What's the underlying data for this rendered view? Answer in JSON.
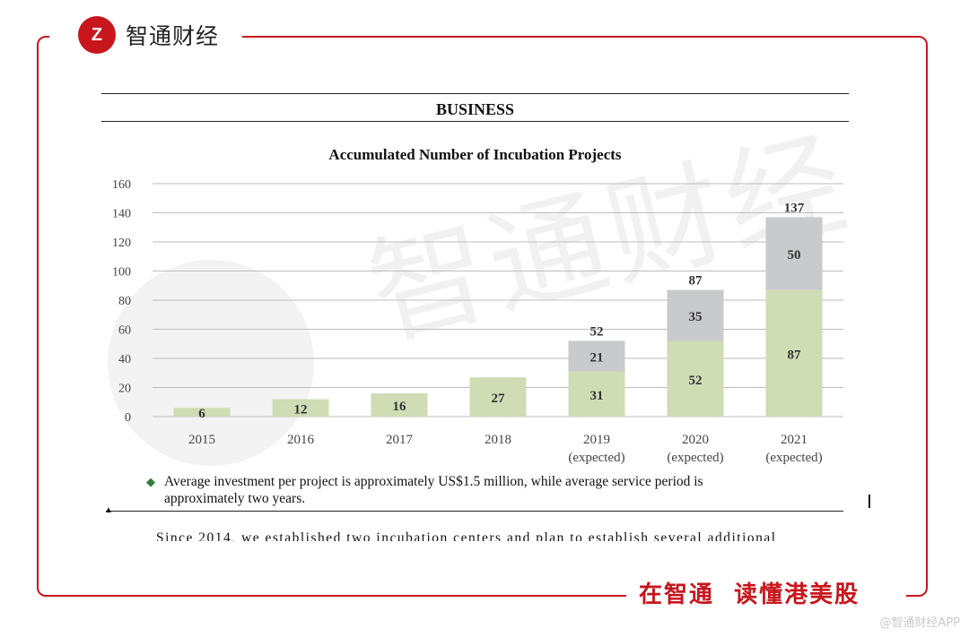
{
  "brand": {
    "logo_text": "Z",
    "name": "智通财经"
  },
  "slogan": "在智通  读懂港美股",
  "credit": "@智通财经APP",
  "watermark": "智通财经",
  "section_title": "BUSINESS",
  "note": {
    "line1": "Average investment per project is approximately US$1.5 million, while average service period is",
    "line2": "approximately two years."
  },
  "cutoff_text": "Since 2014, we established two incubation centers and plan to establish several additional",
  "caret": "I",
  "colors": {
    "accent": "#c8161d",
    "series_base": "#cfdcb4",
    "series_additional": "#c9cacb",
    "bullet": "#2e7d3a"
  },
  "chart_data": {
    "type": "bar",
    "stacked": true,
    "title": "Accumulated Number of Incubation Projects",
    "categories": [
      "2015",
      "2016",
      "2017",
      "2018",
      "2019",
      "2020",
      "2021"
    ],
    "category_sublabels": [
      "",
      "",
      "",
      "",
      "(expected)",
      "(expected)",
      "(expected)"
    ],
    "series": [
      {
        "values": [
          6,
          12,
          16,
          27,
          31,
          52,
          87
        ]
      },
      {
        "values": [
          null,
          null,
          null,
          null,
          21,
          35,
          50
        ]
      }
    ],
    "totals": [
      null,
      null,
      null,
      null,
      52,
      87,
      137
    ],
    "ylim": [
      0,
      160
    ],
    "yticks": [
      0,
      20,
      40,
      60,
      80,
      100,
      120,
      140,
      160
    ],
    "grid": true,
    "xlabel": "",
    "ylabel": ""
  }
}
